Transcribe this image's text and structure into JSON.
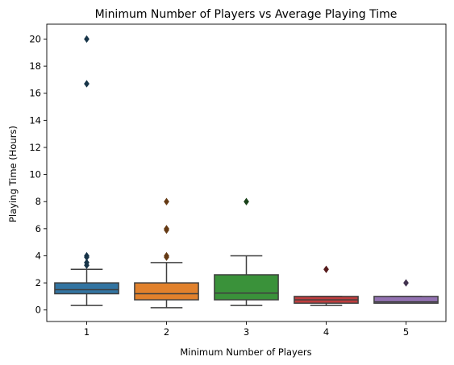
{
  "chart_data": {
    "type": "box",
    "title": "Minimum Number of Players vs Average Playing Time",
    "xlabel": "Minimum Number of Players",
    "ylabel": "Playing Time (Hours)",
    "ylim": [
      -0.85,
      21.1
    ],
    "yticks": [
      0,
      2,
      4,
      6,
      8,
      10,
      12,
      14,
      16,
      18,
      20
    ],
    "ytick_labels": [
      "0",
      "2",
      "4",
      "6",
      "8",
      "10",
      "12",
      "14",
      "16",
      "18",
      "20"
    ],
    "grid": false,
    "legend": "none",
    "categories": [
      "1",
      "2",
      "3",
      "4",
      "5"
    ],
    "boxes": [
      {
        "category": "1",
        "color": "#3274a1",
        "whisker_low": 0.33,
        "q1": 1.2,
        "median": 1.5,
        "q3": 2.0,
        "whisker_high": 3.0,
        "outliers": [
          20.0,
          16.7,
          4.0,
          3.9,
          3.5,
          3.3
        ]
      },
      {
        "category": "2",
        "color": "#e1812c",
        "whisker_low": 0.17,
        "q1": 0.75,
        "median": 1.2,
        "q3": 2.0,
        "whisker_high": 3.5,
        "outliers": [
          8.0,
          6.0,
          5.9,
          4.0,
          3.9
        ]
      },
      {
        "category": "3",
        "color": "#3a923a",
        "whisker_low": 0.33,
        "q1": 0.75,
        "median": 1.25,
        "q3": 2.6,
        "whisker_high": 4.0,
        "outliers": [
          8.0
        ]
      },
      {
        "category": "4",
        "color": "#c03d3e",
        "whisker_low": 0.33,
        "q1": 0.5,
        "median": 0.75,
        "q3": 1.0,
        "whisker_high": 1.0,
        "outliers": [
          3.0
        ]
      },
      {
        "category": "5",
        "color": "#9372b2",
        "whisker_low": 0.5,
        "q1": 0.5,
        "median": 0.6,
        "q3": 1.0,
        "whisker_high": 1.0,
        "outliers": [
          2.0
        ]
      }
    ]
  }
}
